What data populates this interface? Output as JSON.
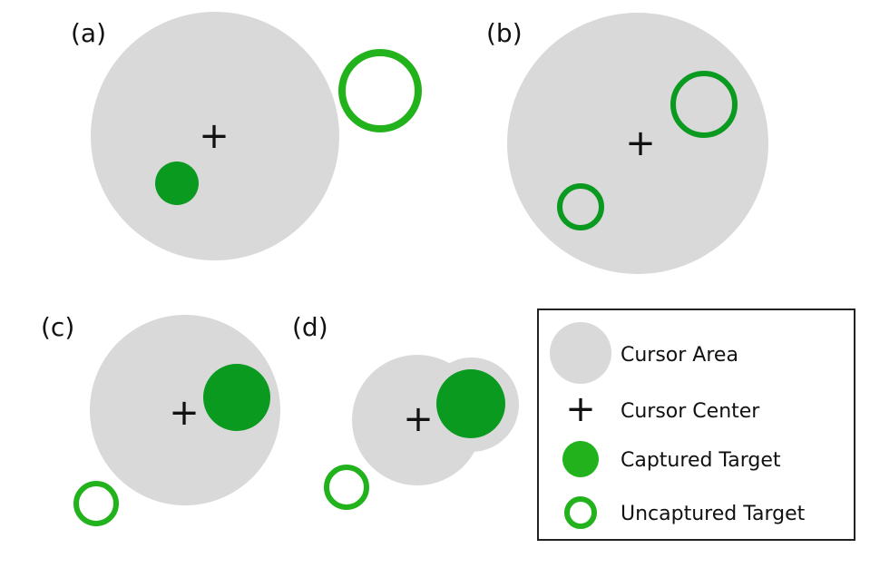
{
  "colors": {
    "cursor_area": "#d9d9d9",
    "captured_target": "#0a9a1f",
    "uncaptured_target": "#21b21c",
    "legend_border": "#222222",
    "text": "#111111"
  },
  "symbols": {
    "cursor_center": "+"
  },
  "panels": {
    "a": {
      "label": "(a)"
    },
    "b": {
      "label": "(b)"
    },
    "c": {
      "label": "(c)"
    },
    "d": {
      "label": "(d)"
    }
  },
  "legend": {
    "items": [
      {
        "label": "Cursor Area",
        "icon": "gray-circle-icon"
      },
      {
        "label": "Cursor Center",
        "icon": "plus-icon"
      },
      {
        "label": "Captured Target",
        "icon": "filled-green-circle-icon"
      },
      {
        "label": "Uncaptured Target",
        "icon": "green-ring-icon"
      }
    ]
  }
}
